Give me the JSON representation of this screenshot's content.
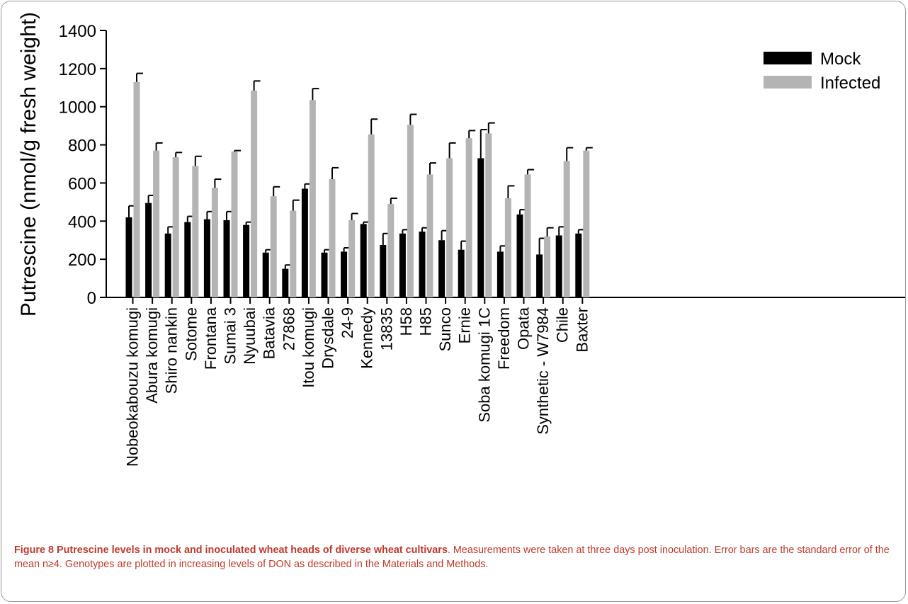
{
  "chart_data": {
    "type": "bar",
    "title": "",
    "xlabel": "",
    "ylabel": "Putrescine (nmol/g fresh weight)",
    "ylim": [
      0,
      1400
    ],
    "yticks": [
      0,
      200,
      400,
      600,
      800,
      1000,
      1200,
      1400
    ],
    "legend_position": "top-right",
    "grid": false,
    "categories": [
      "Nobeokabouzu komugi",
      "Abura komugi",
      "Shiro nankin",
      "Sotome",
      "Frontana",
      "Sumai 3",
      "Nyuubai",
      "Batavia",
      "27868",
      "Itou komugi",
      "Drysdale",
      "24-9",
      "Kennedy",
      "13835",
      "H58",
      "H85",
      "Sunco",
      "Ernie",
      "Soba komugi 1C",
      "Freedom",
      "Opata",
      "Synthetic - W7984",
      "Chile",
      "Baxter"
    ],
    "series": [
      {
        "name": "Mock",
        "color": "#000000",
        "values": [
          420,
          495,
          335,
          395,
          410,
          405,
          380,
          235,
          150,
          570,
          235,
          240,
          385,
          275,
          335,
          345,
          300,
          250,
          730,
          240,
          435,
          225,
          325,
          335
        ],
        "errors": [
          60,
          40,
          35,
          30,
          40,
          45,
          15,
          15,
          20,
          25,
          15,
          20,
          10,
          60,
          20,
          20,
          50,
          45,
          150,
          30,
          25,
          85,
          45,
          20
        ]
      },
      {
        "name": "Infected",
        "color": "#b4b4b4",
        "values": [
          1130,
          770,
          735,
          690,
          575,
          765,
          1085,
          530,
          455,
          1035,
          620,
          405,
          855,
          490,
          905,
          645,
          730,
          835,
          860,
          520,
          645,
          320,
          715,
          770
        ],
        "errors": [
          45,
          40,
          25,
          50,
          45,
          5,
          50,
          50,
          55,
          60,
          60,
          35,
          80,
          30,
          55,
          60,
          80,
          40,
          55,
          65,
          25,
          45,
          70,
          15
        ]
      }
    ]
  },
  "caption": {
    "label": "Figure 8",
    "title": "Putrescine levels in mock and inoculated wheat heads of diverse wheat cultivars",
    "body": ". Measurements were taken at three days post inoculation. Error bars are the standard error of the mean n≥4. Genotypes are plotted in increasing levels of DON as described in the Materials and Methods."
  }
}
